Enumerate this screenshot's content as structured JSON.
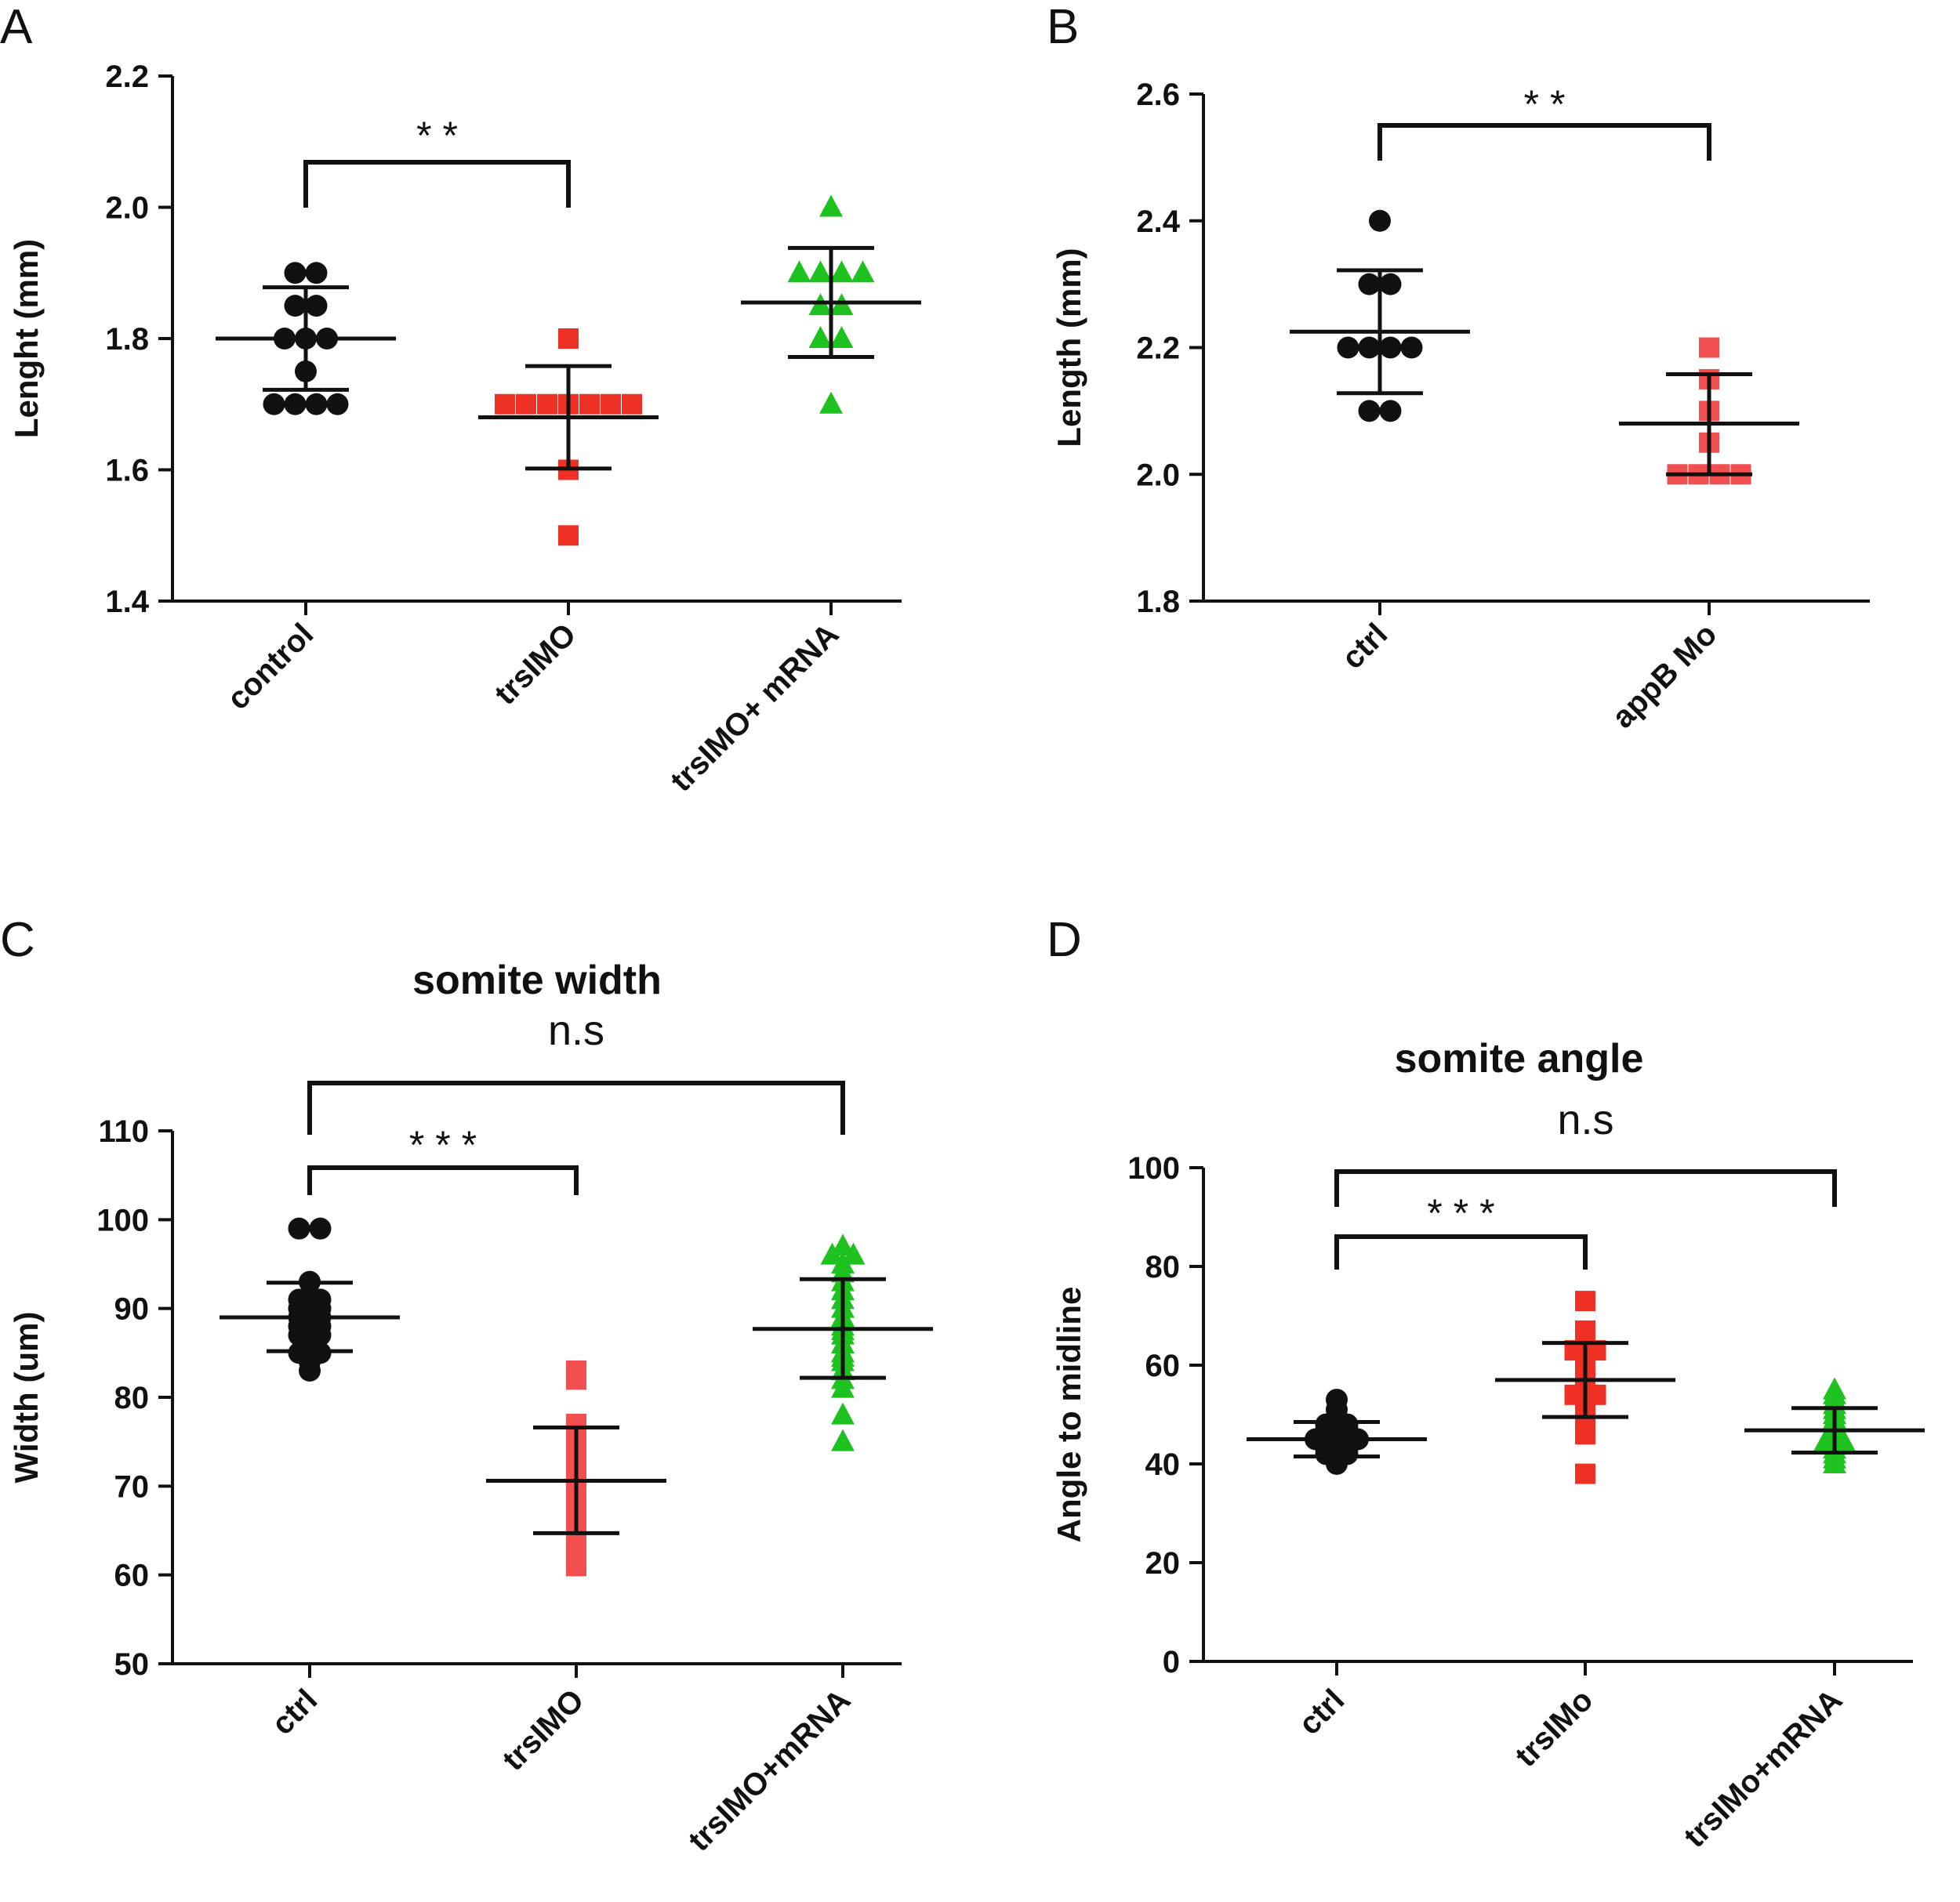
{
  "colors": {
    "axis": "#111111",
    "black_series": "#111111",
    "red_series": "#ee3124",
    "red_light_series": "#f25050",
    "green_series": "#1ec21e"
  },
  "chart_data": [
    {
      "panel": "A",
      "type": "scatter",
      "title": "",
      "xlabel": "",
      "ylabel": "Lenght (mm)",
      "ylim": [
        1.4,
        2.2
      ],
      "yticks": [
        "1.4",
        "1.6",
        "1.8",
        "2.0",
        "2.2"
      ],
      "categories": [
        "control",
        "trsIMO",
        "trsIMO+ mRNA"
      ],
      "series": [
        {
          "category": "control",
          "marker": "circle",
          "color": "black",
          "mean": 1.8,
          "sd_low": 1.722,
          "sd_high": 1.878,
          "values": [
            1.9,
            1.9,
            1.85,
            1.85,
            1.8,
            1.8,
            1.8,
            1.75,
            1.7,
            1.7,
            1.7,
            1.7
          ]
        },
        {
          "category": "trsIMO",
          "marker": "square",
          "color": "red",
          "mean": 1.68,
          "sd_low": 1.602,
          "sd_high": 1.758,
          "values": [
            1.8,
            1.7,
            1.7,
            1.7,
            1.7,
            1.7,
            1.7,
            1.7,
            1.6,
            1.5
          ]
        },
        {
          "category": "trsIMO+ mRNA",
          "marker": "triangle",
          "color": "green",
          "mean": 1.855,
          "sd_low": 1.772,
          "sd_high": 1.938,
          "values": [
            2.0,
            1.9,
            1.9,
            1.9,
            1.9,
            1.85,
            1.85,
            1.8,
            1.8,
            1.7
          ]
        }
      ],
      "comparisons": [
        {
          "from": 0,
          "to": 1,
          "label": "* *"
        }
      ]
    },
    {
      "panel": "B",
      "type": "scatter",
      "title": "",
      "xlabel": "",
      "ylabel": "Length (mm)",
      "ylim": [
        1.8,
        2.6
      ],
      "yticks": [
        "1.8",
        "2.0",
        "2.2",
        "2.4",
        "2.6"
      ],
      "categories": [
        "ctrl",
        "appB Mo"
      ],
      "series": [
        {
          "category": "ctrl",
          "marker": "circle",
          "color": "black",
          "mean": 2.225,
          "sd_low": 2.128,
          "sd_high": 2.322,
          "values": [
            2.4,
            2.3,
            2.3,
            2.2,
            2.2,
            2.2,
            2.2,
            2.1,
            2.1
          ]
        },
        {
          "category": "appB Mo",
          "marker": "square",
          "color": "red_light",
          "mean": 2.08,
          "sd_low": 2.0,
          "sd_high": 2.158,
          "values": [
            2.2,
            2.15,
            2.1,
            2.05,
            2.0,
            2.0,
            2.0,
            2.0
          ]
        }
      ],
      "comparisons": [
        {
          "from": 0,
          "to": 1,
          "label": "* *"
        }
      ]
    },
    {
      "panel": "C",
      "type": "scatter",
      "title": "somite width",
      "xlabel": "",
      "ylabel": "Width (um)",
      "ylim": [
        50,
        110
      ],
      "yticks": [
        "50",
        "60",
        "70",
        "80",
        "90",
        "100",
        "110"
      ],
      "categories": [
        "ctrl",
        "trsIMO",
        "trsIMO+mRNA"
      ],
      "series": [
        {
          "category": "ctrl",
          "marker": "circle",
          "color": "black",
          "mean": 89,
          "sd_low": 85.2,
          "sd_high": 92.9,
          "values": [
            99,
            99,
            93,
            91,
            91,
            90.5,
            90,
            90,
            89.5,
            89,
            89,
            88.5,
            88,
            88,
            87.5,
            87,
            87,
            86,
            85,
            85,
            84,
            83
          ]
        },
        {
          "category": "trsIMO",
          "marker": "square",
          "color": "red_light",
          "mean": 70.6,
          "sd_low": 64.7,
          "sd_high": 76.6,
          "values": [
            83,
            82,
            77,
            76.5,
            75,
            74,
            73,
            72,
            71,
            70.5,
            70,
            69.5,
            69,
            68,
            67,
            66,
            65.5,
            65,
            64,
            63.5,
            62,
            61
          ]
        },
        {
          "category": "trsIMO+mRNA",
          "marker": "triangle",
          "color": "green",
          "mean": 87.7,
          "sd_low": 82.2,
          "sd_high": 93.3,
          "values": [
            97,
            96,
            96,
            95,
            94,
            93,
            92,
            91,
            90,
            89,
            88,
            87.5,
            87,
            86,
            85,
            84.5,
            84,
            83,
            82,
            81,
            78,
            75
          ]
        }
      ],
      "comparisons": [
        {
          "from": 0,
          "to": 1,
          "label": "* * *"
        },
        {
          "from": 0,
          "to": 2,
          "label": "n.s"
        }
      ]
    },
    {
      "panel": "D",
      "type": "scatter",
      "title": "somite angle",
      "xlabel": "",
      "ylabel": "Angle to midline",
      "ylim": [
        0,
        100
      ],
      "yticks": [
        "0",
        "20",
        "40",
        "60",
        "80",
        "100"
      ],
      "categories": [
        "ctrl",
        "trsIMo",
        "trsIMo+mRNA"
      ],
      "series": [
        {
          "category": "ctrl",
          "marker": "circle",
          "color": "black",
          "mean": 45,
          "sd_low": 41.5,
          "sd_high": 48.5,
          "values": [
            53,
            51,
            48,
            48,
            47,
            47,
            46,
            46,
            45.5,
            45,
            45,
            45,
            44.5,
            44,
            44,
            43.5,
            43,
            43,
            42,
            42,
            41,
            40
          ]
        },
        {
          "category": "trsIMo",
          "marker": "square",
          "color": "red",
          "mean": 57,
          "sd_low": 49.5,
          "sd_high": 64.5,
          "values": [
            73,
            67,
            65,
            64,
            63,
            63,
            62,
            61,
            60,
            59,
            58,
            57,
            56,
            55,
            54,
            54,
            53,
            52,
            51,
            50,
            49,
            46,
            38
          ]
        },
        {
          "category": "trsIMo+mRNA",
          "marker": "triangle",
          "color": "green",
          "mean": 46.8,
          "sd_low": 42.3,
          "sd_high": 51.3,
          "values": [
            55,
            54,
            53,
            52,
            51,
            50,
            49,
            48,
            47.5,
            47,
            46.5,
            46,
            45.5,
            45,
            44,
            44,
            43,
            42,
            41,
            40
          ]
        }
      ],
      "comparisons": [
        {
          "from": 0,
          "to": 1,
          "label": "* * *"
        },
        {
          "from": 0,
          "to": 2,
          "label": "n.s"
        }
      ]
    }
  ]
}
